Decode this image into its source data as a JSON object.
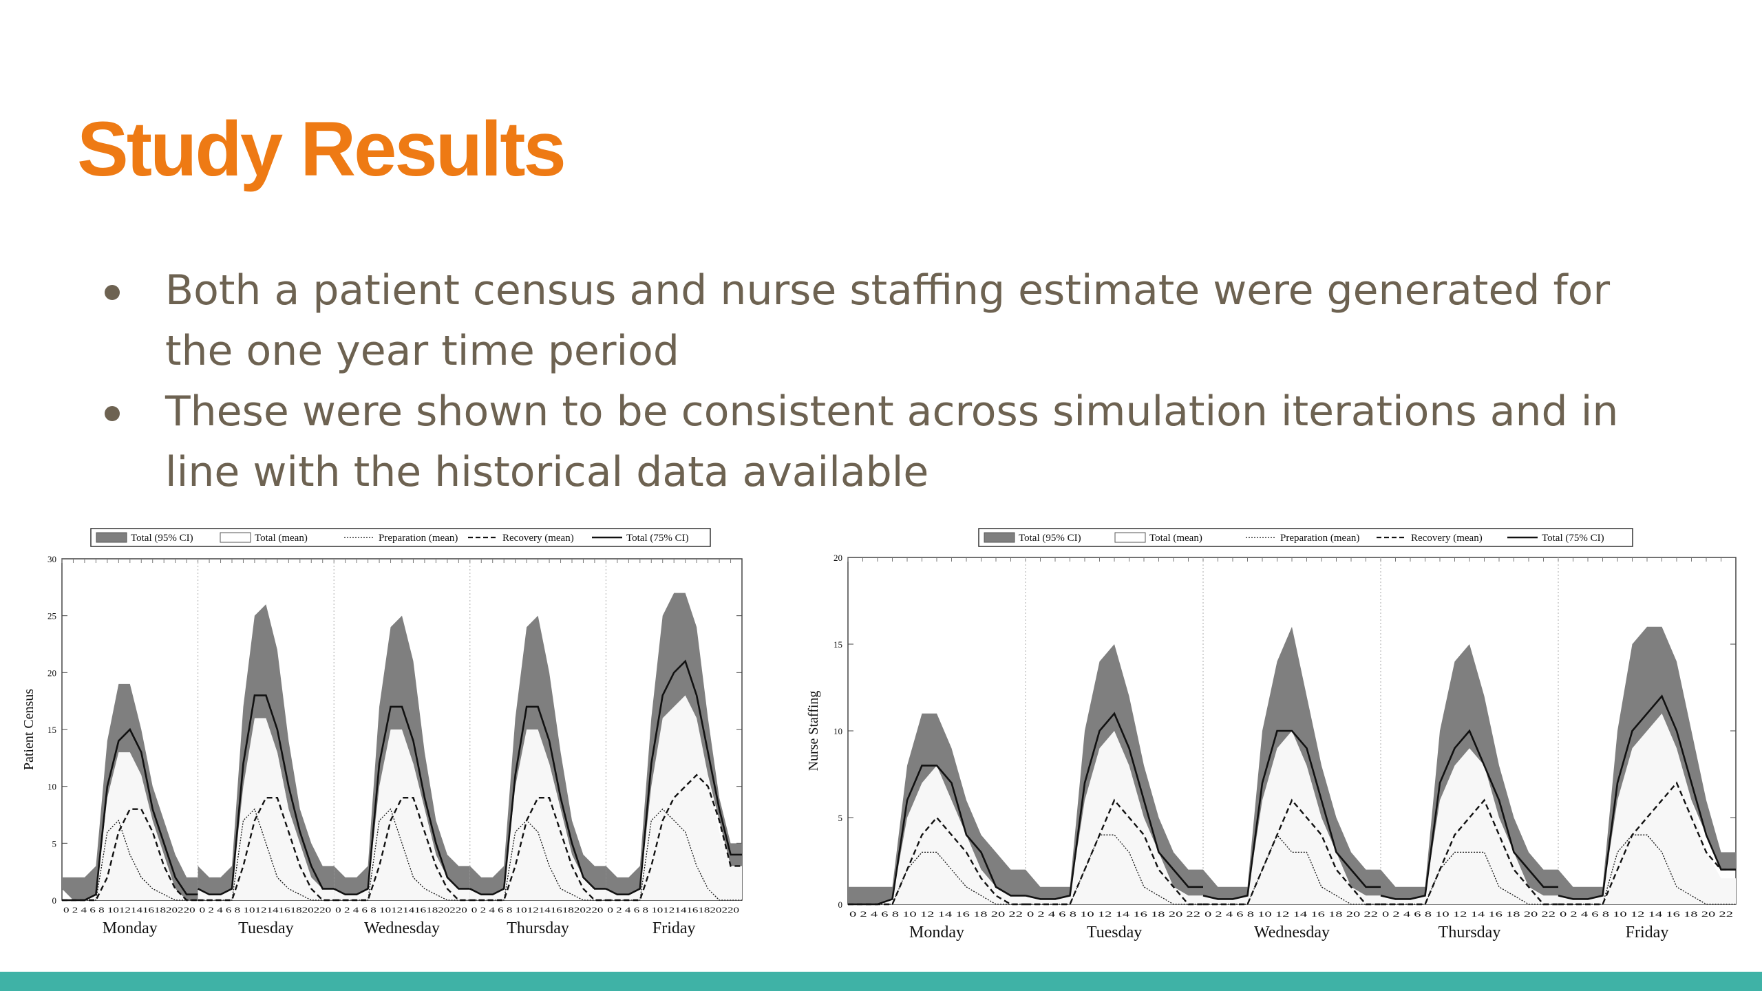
{
  "slide": {
    "title": "Study Results",
    "bullets": [
      "Both a patient census and nurse staffing estimate were generated for the one year time period",
      "These were shown to be consistent across simulation iterations and in line with the historical data available"
    ]
  },
  "colors": {
    "title": "#ee7a14",
    "body_text": "#6d6251",
    "footer_bar": "#3fb2a6",
    "ci95_band": "#7f7f7f",
    "ci75_fill": "#f7f7f7"
  },
  "chart_data": [
    {
      "type": "line",
      "ylabel": "Patient Census",
      "ylim": [
        0,
        30
      ],
      "yticks": [
        0,
        5,
        10,
        15,
        20,
        25,
        30
      ],
      "hours_label": "0 2 4 6 8 101214161820220",
      "days": [
        "Monday",
        "Tuesday",
        "Wednesday",
        "Thursday",
        "Friday"
      ],
      "legend": [
        "Total (95% CI)",
        "Total (mean)",
        "Preparation (mean)",
        "Recovery (mean)",
        "Total (75% CI)"
      ],
      "x_hours": [
        0,
        2,
        4,
        6,
        8,
        10,
        12,
        14,
        16,
        18,
        20,
        22
      ],
      "series": [
        {
          "name": "Total (95% CI)",
          "per_day": [
            {
              "low": [
                1,
                0,
                0,
                0,
                6,
                12,
                12,
                10,
                6,
                3,
                1,
                0
              ],
              "high": [
                2,
                2,
                2,
                3,
                14,
                19,
                19,
                15,
                10,
                7,
                4,
                2
              ]
            },
            {
              "low": [
                1,
                0,
                0,
                0,
                8,
                15,
                15,
                13,
                8,
                4,
                1,
                0
              ],
              "high": [
                3,
                2,
                2,
                3,
                17,
                25,
                26,
                22,
                14,
                8,
                5,
                3
              ]
            },
            {
              "low": [
                1,
                0,
                0,
                0,
                8,
                14,
                14,
                12,
                8,
                4,
                1,
                0
              ],
              "high": [
                3,
                2,
                2,
                3,
                17,
                24,
                25,
                21,
                13,
                7,
                4,
                3
              ]
            },
            {
              "low": [
                1,
                0,
                0,
                0,
                7,
                14,
                14,
                12,
                8,
                4,
                1,
                0
              ],
              "high": [
                3,
                2,
                2,
                3,
                16,
                24,
                25,
                20,
                13,
                7,
                4,
                3
              ]
            },
            {
              "low": [
                1,
                0,
                0,
                0,
                7,
                14,
                15,
                17,
                15,
                11,
                7,
                3
              ],
              "high": [
                3,
                2,
                2,
                3,
                16,
                25,
                27,
                27,
                24,
                16,
                9,
                5
              ]
            }
          ]
        },
        {
          "name": "Total (75% CI)",
          "per_day": [
            [
              0,
              0,
              0,
              0.5,
              10,
              14,
              15,
              13,
              8,
              5,
              2,
              0.5
            ],
            [
              1,
              0.5,
              0.5,
              1,
              12,
              18,
              18,
              15,
              10,
              6,
              3,
              1
            ],
            [
              1,
              0.5,
              0.5,
              1,
              12,
              17,
              17,
              14,
              9,
              5,
              2,
              1
            ],
            [
              1,
              0.5,
              0.5,
              1,
              11,
              17,
              17,
              14,
              9,
              5,
              2,
              1
            ],
            [
              1,
              0.5,
              0.5,
              1,
              12,
              18,
              20,
              21,
              18,
              13,
              8,
              4
            ]
          ]
        },
        {
          "name": "Total (mean)",
          "per_day": [
            [
              0,
              0,
              0,
              0.5,
              9,
              13,
              13,
              11,
              7,
              4,
              1,
              0
            ],
            [
              1,
              0.5,
              0.5,
              1,
              10,
              16,
              16,
              13,
              8,
              5,
              2,
              1
            ],
            [
              1,
              0.5,
              0.5,
              1,
              10,
              15,
              15,
              12,
              8,
              4,
              2,
              1
            ],
            [
              1,
              0.5,
              0.5,
              1,
              10,
              15,
              15,
              12,
              8,
              4,
              2,
              1
            ],
            [
              1,
              0.5,
              0.5,
              1,
              10,
              16,
              17,
              18,
              16,
              11,
              6,
              3
            ]
          ]
        },
        {
          "name": "Recovery (mean)",
          "per_day": [
            [
              0,
              0,
              0,
              0,
              2,
              6,
              8,
              8,
              6,
              3,
              1,
              0
            ],
            [
              0,
              0,
              0,
              0,
              3,
              7,
              9,
              9,
              6,
              3,
              1,
              0
            ],
            [
              0,
              0,
              0,
              0,
              3,
              7,
              9,
              9,
              6,
              3,
              1,
              0
            ],
            [
              0,
              0,
              0,
              0,
              3,
              7,
              9,
              9,
              6,
              3,
              1,
              0
            ],
            [
              0,
              0,
              0,
              0,
              3,
              7,
              9,
              10,
              11,
              10,
              7,
              3
            ]
          ]
        },
        {
          "name": "Preparation (mean)",
          "per_day": [
            [
              0,
              0,
              0,
              0,
              6,
              7,
              4,
              2,
              1,
              0.5,
              0,
              0
            ],
            [
              0,
              0,
              0,
              0,
              7,
              8,
              5,
              2,
              1,
              0.5,
              0,
              0
            ],
            [
              0,
              0,
              0,
              0,
              7,
              8,
              5,
              2,
              1,
              0.5,
              0,
              0
            ],
            [
              0,
              0,
              0,
              0,
              6,
              7,
              6,
              3,
              1,
              0.5,
              0,
              0
            ],
            [
              0,
              0,
              0,
              0,
              7,
              8,
              7,
              6,
              3,
              1,
              0,
              0
            ]
          ]
        }
      ]
    },
    {
      "type": "line",
      "ylabel": "Nurse Staffing",
      "ylim": [
        0,
        20
      ],
      "yticks": [
        0,
        5,
        10,
        15,
        20
      ],
      "hours_label": "0 2 4 6 8 10 12 14 16 18 20 22",
      "days": [
        "Monday",
        "Tuesday",
        "Wednesday",
        "Thursday",
        "Friday"
      ],
      "legend": [
        "Total (95% CI)",
        "Total (mean)",
        "Preparation (mean)",
        "Recovery (mean)",
        "Total (75% CI)"
      ],
      "x_hours": [
        0,
        2,
        4,
        6,
        8,
        10,
        12,
        14,
        16,
        18,
        20,
        22
      ],
      "series": [
        {
          "name": "Total (95% CI)",
          "per_day": [
            {
              "low": [
                0,
                0,
                0,
                0,
                4,
                6,
                6,
                5,
                3,
                2,
                1,
                0.5
              ],
              "high": [
                1,
                1,
                1,
                1,
                8,
                11,
                11,
                9,
                6,
                4,
                3,
                2
              ]
            },
            {
              "low": [
                0.5,
                0,
                0,
                0,
                5,
                8,
                8,
                6,
                4,
                2,
                1,
                0.5
              ],
              "high": [
                2,
                1,
                1,
                1,
                10,
                14,
                15,
                12,
                8,
                5,
                3,
                2
              ]
            },
            {
              "low": [
                0.5,
                0,
                0,
                0,
                5,
                8,
                8,
                6,
                4,
                2,
                1,
                0.5
              ],
              "high": [
                2,
                1,
                1,
                1,
                10,
                14,
                16,
                12,
                8,
                5,
                3,
                2
              ]
            },
            {
              "low": [
                0.5,
                0,
                0,
                0,
                5,
                7,
                8,
                6,
                4,
                2,
                1,
                0.5
              ],
              "high": [
                2,
                1,
                1,
                1,
                10,
                14,
                15,
                12,
                8,
                5,
                3,
                2
              ]
            },
            {
              "low": [
                0.5,
                0,
                0,
                0,
                5,
                8,
                9,
                9,
                8,
                6,
                4,
                2
              ],
              "high": [
                2,
                1,
                1,
                1,
                10,
                15,
                16,
                16,
                14,
                10,
                6,
                3
              ]
            }
          ]
        },
        {
          "name": "Total (75% CI)",
          "per_day": [
            [
              0,
              0,
              0,
              0.3,
              6,
              8,
              8,
              7,
              4,
              3,
              1,
              0.5
            ],
            [
              0.5,
              0.3,
              0.3,
              0.5,
              7,
              10,
              11,
              9,
              6,
              3,
              2,
              1
            ],
            [
              0.5,
              0.3,
              0.3,
              0.5,
              7,
              10,
              10,
              9,
              6,
              3,
              2,
              1
            ],
            [
              0.5,
              0.3,
              0.3,
              0.5,
              7,
              9,
              10,
              8,
              6,
              3,
              2,
              1
            ],
            [
              0.5,
              0.3,
              0.3,
              0.5,
              7,
              10,
              11,
              12,
              10,
              7,
              4,
              2
            ]
          ]
        },
        {
          "name": "Total (mean)",
          "per_day": [
            [
              0,
              0,
              0,
              0.3,
              5,
              7,
              8,
              6,
              4,
              2,
              1,
              0.5
            ],
            [
              0.5,
              0.3,
              0.3,
              0.5,
              6,
              9,
              10,
              8,
              5,
              3,
              1,
              0.5
            ],
            [
              0.5,
              0.3,
              0.3,
              0.5,
              6,
              9,
              10,
              8,
              5,
              3,
              1,
              0.5
            ],
            [
              0.5,
              0.3,
              0.3,
              0.5,
              6,
              8,
              9,
              8,
              5,
              3,
              1,
              0.5
            ],
            [
              0.5,
              0.3,
              0.3,
              0.5,
              6,
              9,
              10,
              11,
              9,
              6,
              3,
              1.5
            ]
          ]
        },
        {
          "name": "Recovery (mean)",
          "per_day": [
            [
              0,
              0,
              0,
              0,
              2,
              4,
              5,
              4,
              3,
              1.5,
              0.5,
              0
            ],
            [
              0,
              0,
              0,
              0,
              2,
              4,
              6,
              5,
              4,
              2,
              1,
              0
            ],
            [
              0,
              0,
              0,
              0,
              2,
              4,
              6,
              5,
              4,
              2,
              1,
              0
            ],
            [
              0,
              0,
              0,
              0,
              2,
              4,
              5,
              6,
              4,
              2,
              1,
              0
            ],
            [
              0,
              0,
              0,
              0,
              2,
              4,
              5,
              6,
              7,
              5,
              3,
              2
            ]
          ]
        },
        {
          "name": "Preparation (mean)",
          "per_day": [
            [
              0,
              0,
              0,
              0,
              2,
              3,
              3,
              2,
              1,
              0.5,
              0,
              0
            ],
            [
              0,
              0,
              0,
              0,
              2,
              4,
              4,
              3,
              1,
              0.5,
              0,
              0
            ],
            [
              0,
              0,
              0,
              0,
              2,
              4,
              3,
              3,
              1,
              0.5,
              0,
              0
            ],
            [
              0,
              0,
              0,
              0,
              2,
              3,
              3,
              3,
              1,
              0.5,
              0,
              0
            ],
            [
              0,
              0,
              0,
              0,
              3,
              4,
              4,
              3,
              1,
              0.5,
              0,
              0
            ]
          ]
        }
      ]
    }
  ]
}
